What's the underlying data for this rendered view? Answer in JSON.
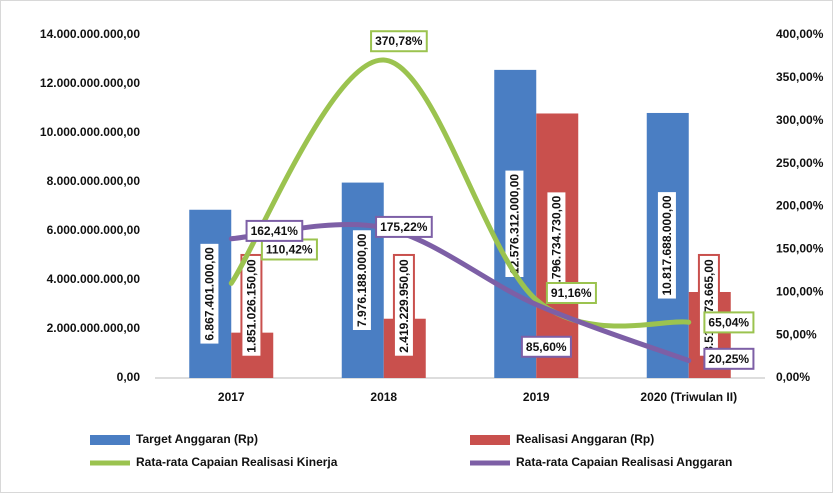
{
  "chart_data": {
    "type": "combo",
    "categories": [
      "2017",
      "2018",
      "2019",
      "2020 (Triwulan II)"
    ],
    "series": [
      {
        "name": "Target Anggaran (Rp)",
        "type": "bar",
        "color": "#4a7ec3",
        "values": [
          6867401000,
          7976188000,
          12576312000,
          10817688000
        ],
        "value_labels": [
          "6.867.401.000,00",
          "7.976.188.000,00",
          "12.576.312.000,00",
          "10.817.688.000,00"
        ]
      },
      {
        "name": "Realisasi Anggaran (Rp)",
        "type": "bar",
        "color": "#c9504d",
        "values": [
          1851026150,
          2419229950,
          10796734730,
          3510273665
        ],
        "value_labels": [
          "1.851.026.150,00",
          "2.419.229.950,00",
          "10.796.734.730,00",
          "3.510.273.665,00"
        ]
      },
      {
        "name": "Rata-rata Capaian Realisasi Kinerja",
        "type": "line",
        "axis": "y2",
        "color": "#9bc34f",
        "values": [
          110.42,
          370.78,
          91.16,
          65.04
        ],
        "value_labels": [
          "110,42%",
          "370,78%",
          "91,16%",
          "65,04%"
        ]
      },
      {
        "name": "Rata-rata Capaian Realisasi Anggaran",
        "type": "line",
        "axis": "y2",
        "color": "#7d5fa6",
        "values": [
          162.41,
          175.22,
          85.6,
          20.25
        ],
        "value_labels": [
          "162,41%",
          "175,22%",
          "85,60%",
          "20,25%"
        ]
      }
    ],
    "ylim": [
      0,
      14000000000
    ],
    "yticks": [
      {
        "value": 0,
        "label": "0,00"
      },
      {
        "value": 2000000000,
        "label": "2.000.000.000,00"
      },
      {
        "value": 4000000000,
        "label": "4.000.000.000,00"
      },
      {
        "value": 6000000000,
        "label": "6.000.000.000,00"
      },
      {
        "value": 8000000000,
        "label": "8.000.000.000,00"
      },
      {
        "value": 10000000000,
        "label": "10.000.000.000,00"
      },
      {
        "value": 12000000000,
        "label": "12.000.000.000,00"
      },
      {
        "value": 14000000000,
        "label": "14.000.000.000,00"
      }
    ],
    "y2lim": [
      0,
      400
    ],
    "y2ticks": [
      {
        "value": 0,
        "label": "0,00%"
      },
      {
        "value": 50,
        "label": "50,00%"
      },
      {
        "value": 100,
        "label": "100,00%"
      },
      {
        "value": 150,
        "label": "150,00%"
      },
      {
        "value": 200,
        "label": "200,00%"
      },
      {
        "value": 250,
        "label": "250,00%"
      },
      {
        "value": 300,
        "label": "300,00%"
      },
      {
        "value": 350,
        "label": "350,00%"
      },
      {
        "value": 400,
        "label": "400,00%"
      }
    ],
    "grid": false,
    "legend": "bottom"
  }
}
